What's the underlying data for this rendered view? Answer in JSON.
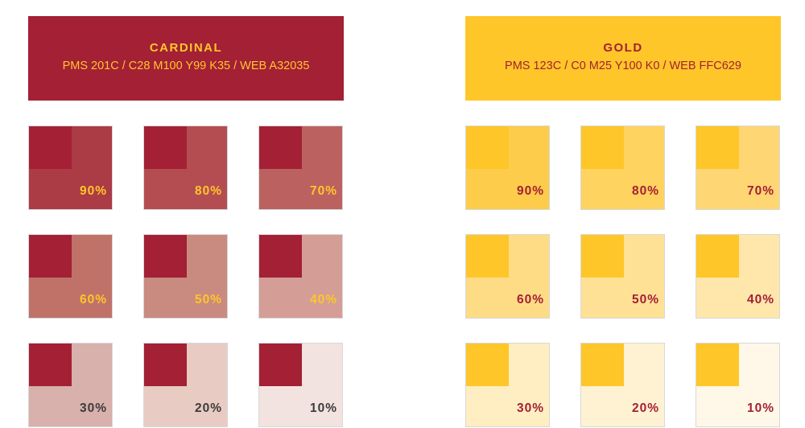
{
  "panels": [
    {
      "name": "CARDINAL",
      "spec": "PMS 201C / C28 M100 Y99 K35 / WEB A32035",
      "color": "#a32035",
      "text_color": "#ffc629",
      "tiles": [
        {
          "label": "90%",
          "color": "#ab3b45",
          "label_color": "#ffc629"
        },
        {
          "label": "80%",
          "color": "#b34d51",
          "label_color": "#ffc629"
        },
        {
          "label": "70%",
          "color": "#bb6260",
          "label_color": "#ffc629"
        },
        {
          "label": "60%",
          "color": "#c07269",
          "label_color": "#ffc629"
        },
        {
          "label": "50%",
          "color": "#c98a80",
          "label_color": "#ffc629"
        },
        {
          "label": "40%",
          "color": "#d49e96",
          "label_color": "#ffc629"
        },
        {
          "label": "30%",
          "color": "#d8b0ac",
          "label_color": "#3c3c3c"
        },
        {
          "label": "20%",
          "color": "#e8cbc3",
          "label_color": "#3c3c3c"
        },
        {
          "label": "10%",
          "color": "#f2e3e0",
          "label_color": "#3c3c3c"
        }
      ]
    },
    {
      "name": "GOLD",
      "spec": "PMS 123C / C0 M25 Y100 K0 / WEB FFC629",
      "color": "#ffc629",
      "text_color": "#a32035",
      "tiles": [
        {
          "label": "90%",
          "color": "#fdcc4a",
          "label_color": "#a32035"
        },
        {
          "label": "80%",
          "color": "#fed35f",
          "label_color": "#a32035"
        },
        {
          "label": "70%",
          "color": "#fed673",
          "label_color": "#a32035"
        },
        {
          "label": "60%",
          "color": "#fedc86",
          "label_color": "#a32035"
        },
        {
          "label": "50%",
          "color": "#ffe196",
          "label_color": "#a32035"
        },
        {
          "label": "40%",
          "color": "#ffe7ab",
          "label_color": "#a32035"
        },
        {
          "label": "30%",
          "color": "#ffeec1",
          "label_color": "#a32035"
        },
        {
          "label": "20%",
          "color": "#fff2d2",
          "label_color": "#a32035"
        },
        {
          "label": "10%",
          "color": "#fff8e8",
          "label_color": "#a32035"
        }
      ]
    }
  ]
}
